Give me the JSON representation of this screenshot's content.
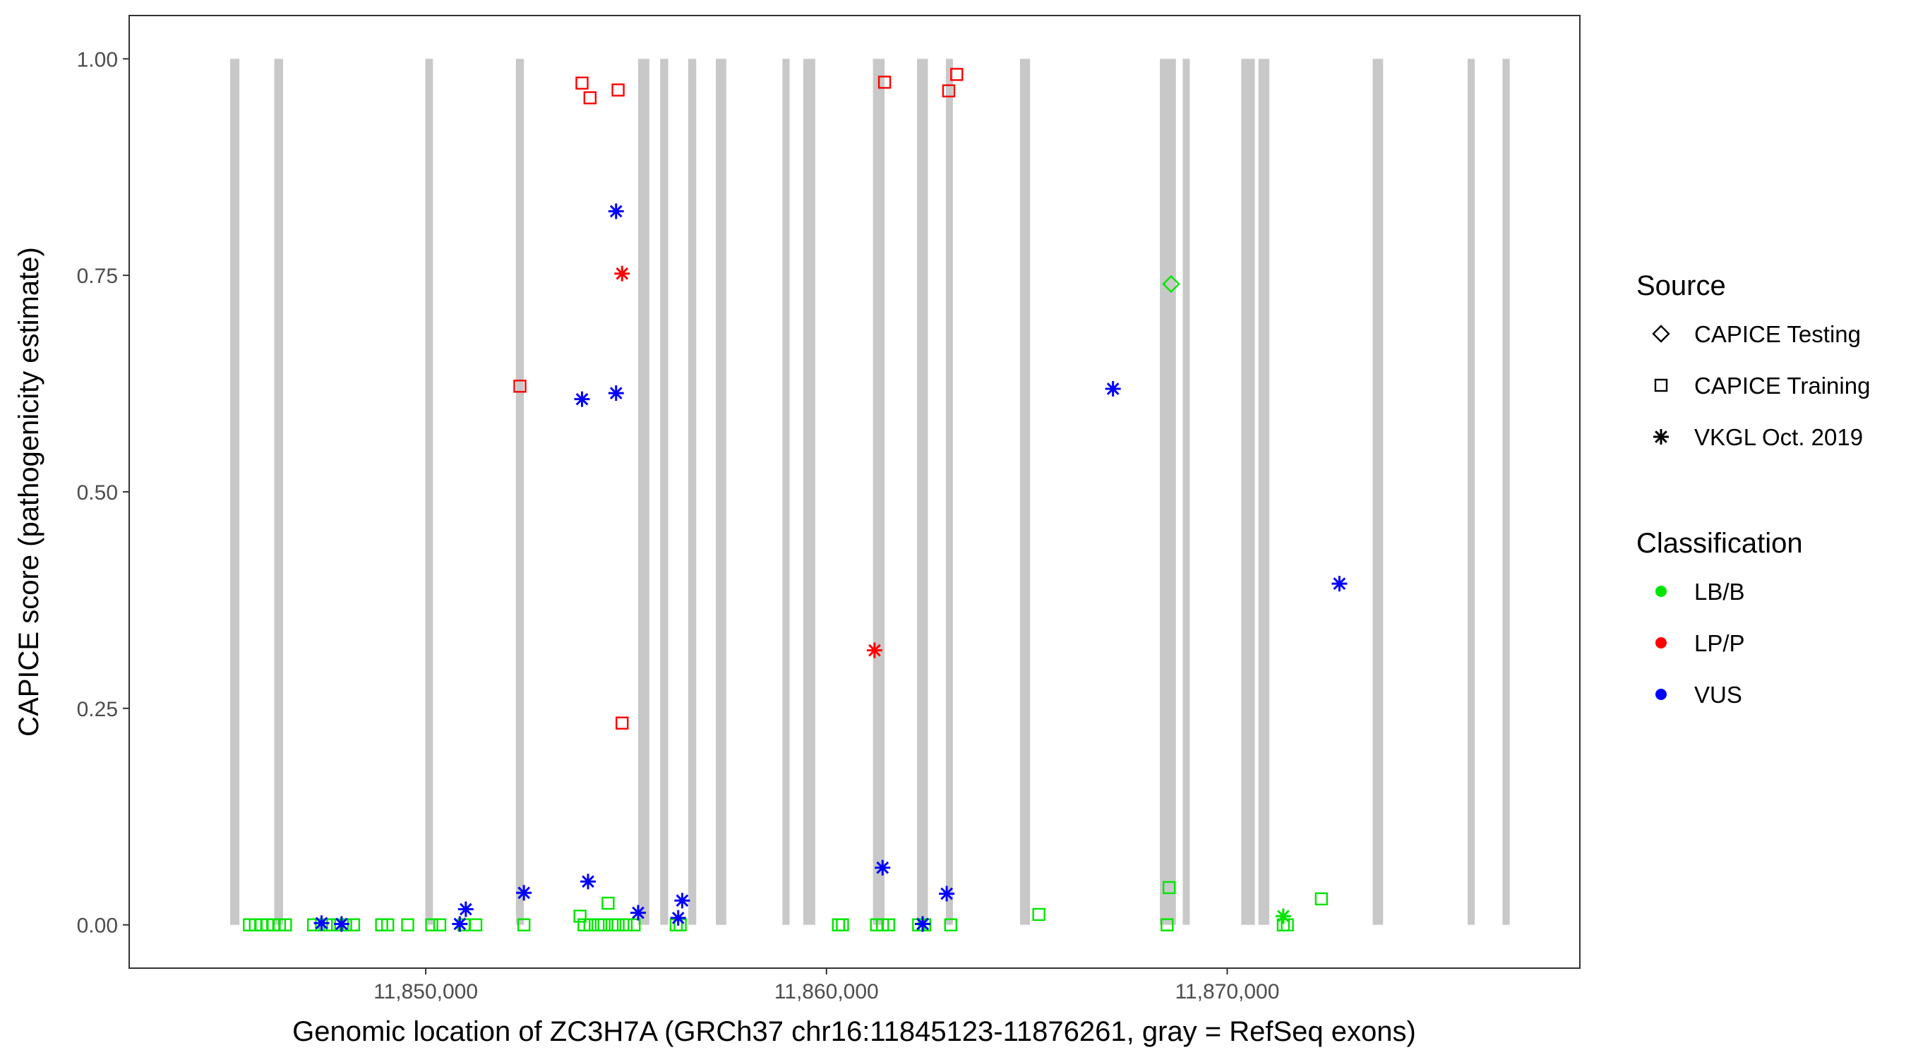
{
  "chart_data": {
    "type": "scatter",
    "title": "",
    "xlabel": "Genomic location of ZC3H7A (GRCh37 chr16:11845123-11876261, gray = RefSeq exons)",
    "ylabel": "CAPICE score (pathogenicity estimate)",
    "xlim": [
      11842600,
      11878800
    ],
    "ylim": [
      -0.05,
      1.05
    ],
    "x_ticks": [
      11850000,
      11860000,
      11870000
    ],
    "x_tick_labels": [
      "11,850,000",
      "11,860,000",
      "11,870,000"
    ],
    "y_ticks": [
      0,
      0.25,
      0.5,
      0.75,
      1
    ],
    "y_tick_labels": [
      "0.00",
      "0.25",
      "0.50",
      "0.75",
      "1.00"
    ],
    "grid": false,
    "legend_position": "right",
    "exon_color": "#c8c8c8",
    "exons": [
      [
        11845120,
        11845350
      ],
      [
        11846220,
        11846440
      ],
      [
        11849990,
        11850180
      ],
      [
        11852250,
        11852450
      ],
      [
        11855300,
        11855580
      ],
      [
        11855850,
        11856050
      ],
      [
        11856550,
        11856750
      ],
      [
        11857240,
        11857500
      ],
      [
        11858900,
        11859080
      ],
      [
        11859420,
        11859720
      ],
      [
        11861160,
        11861450
      ],
      [
        11862260,
        11862530
      ],
      [
        11862980,
        11863150
      ],
      [
        11864830,
        11865080
      ],
      [
        11868320,
        11868720
      ],
      [
        11868890,
        11869030
      ],
      [
        11870350,
        11870690
      ],
      [
        11870780,
        11871050
      ],
      [
        11873630,
        11873890
      ],
      [
        11876000,
        11876130
      ],
      [
        11876870,
        11877050
      ]
    ],
    "legends": [
      {
        "title": "Source",
        "items": [
          {
            "label": "CAPICE Testing",
            "shape": "diamond"
          },
          {
            "label": "CAPICE Training",
            "shape": "square"
          },
          {
            "label": "VKGL Oct. 2019",
            "shape": "asterisk"
          }
        ]
      },
      {
        "title": "Classification",
        "items": [
          {
            "label": "LB/B",
            "color": "#00e600"
          },
          {
            "label": "LP/P",
            "color": "#ff0000"
          },
          {
            "label": "VUS",
            "color": "#0000ff"
          }
        ]
      }
    ],
    "series": [
      {
        "name": "CAPICE Testing LB/B",
        "shape": "diamond",
        "color": "#00e600",
        "points": [
          [
            11868600,
            0.74
          ]
        ]
      },
      {
        "name": "CAPICE Training LB/B",
        "shape": "square",
        "color": "#00e600",
        "points": [
          [
            11845600,
            0
          ],
          [
            11845750,
            0
          ],
          [
            11845900,
            0
          ],
          [
            11846050,
            0
          ],
          [
            11846200,
            0
          ],
          [
            11846350,
            0
          ],
          [
            11846500,
            0
          ],
          [
            11847200,
            0
          ],
          [
            11847400,
            0
          ],
          [
            11847600,
            0
          ],
          [
            11847800,
            0
          ],
          [
            11848000,
            0
          ],
          [
            11848200,
            0
          ],
          [
            11848900,
            0
          ],
          [
            11849050,
            0
          ],
          [
            11849550,
            0
          ],
          [
            11850150,
            0
          ],
          [
            11850350,
            0
          ],
          [
            11850950,
            0
          ],
          [
            11851250,
            0
          ],
          [
            11852450,
            0
          ],
          [
            11853850,
            0.01
          ],
          [
            11853950,
            0
          ],
          [
            11854100,
            0
          ],
          [
            11854300,
            0
          ],
          [
            11854450,
            0
          ],
          [
            11854550,
            0.025
          ],
          [
            11854650,
            0
          ],
          [
            11854800,
            0
          ],
          [
            11855000,
            0
          ],
          [
            11855200,
            0
          ],
          [
            11856250,
            0
          ],
          [
            11856350,
            0
          ],
          [
            11860300,
            0
          ],
          [
            11860400,
            0
          ],
          [
            11861250,
            0
          ],
          [
            11861400,
            0
          ],
          [
            11861550,
            0
          ],
          [
            11862300,
            0
          ],
          [
            11862450,
            0
          ],
          [
            11863100,
            0
          ],
          [
            11865300,
            0.012
          ],
          [
            11868500,
            0
          ],
          [
            11868550,
            0.043
          ],
          [
            11871400,
            0
          ],
          [
            11871500,
            0
          ],
          [
            11872350,
            0.03
          ]
        ]
      },
      {
        "name": "CAPICE Training LP/P",
        "shape": "square",
        "color": "#ff0000",
        "points": [
          [
            11852350,
            0.622
          ],
          [
            11853900,
            0.972
          ],
          [
            11854100,
            0.955
          ],
          [
            11854800,
            0.964
          ],
          [
            11854900,
            0.233
          ],
          [
            11861450,
            0.973
          ],
          [
            11863050,
            0.963
          ],
          [
            11863250,
            0.982
          ]
        ]
      },
      {
        "name": "VKGL Oct. 2019 LB/B",
        "shape": "asterisk",
        "color": "#00e600",
        "points": [
          [
            11862400,
            0.001
          ],
          [
            11871400,
            0.01
          ]
        ]
      },
      {
        "name": "VKGL Oct. 2019 LP/P",
        "shape": "asterisk",
        "color": "#ff0000",
        "points": [
          [
            11854900,
            0.752
          ],
          [
            11861200,
            0.317
          ]
        ]
      },
      {
        "name": "VKGL Oct. 2019 VUS",
        "shape": "asterisk",
        "color": "#0000ff",
        "points": [
          [
            11847400,
            0.002
          ],
          [
            11847900,
            0.001
          ],
          [
            11850850,
            0.001
          ],
          [
            11851000,
            0.018
          ],
          [
            11852450,
            0.037
          ],
          [
            11853900,
            0.607
          ],
          [
            11854050,
            0.05
          ],
          [
            11854750,
            0.824
          ],
          [
            11854750,
            0.614
          ],
          [
            11855300,
            0.014
          ],
          [
            11856300,
            0.008
          ],
          [
            11856400,
            0.028
          ],
          [
            11861400,
            0.066
          ],
          [
            11862400,
            0.001
          ],
          [
            11863000,
            0.036
          ],
          [
            11867150,
            0.619
          ],
          [
            11872800,
            0.394
          ]
        ]
      }
    ]
  }
}
